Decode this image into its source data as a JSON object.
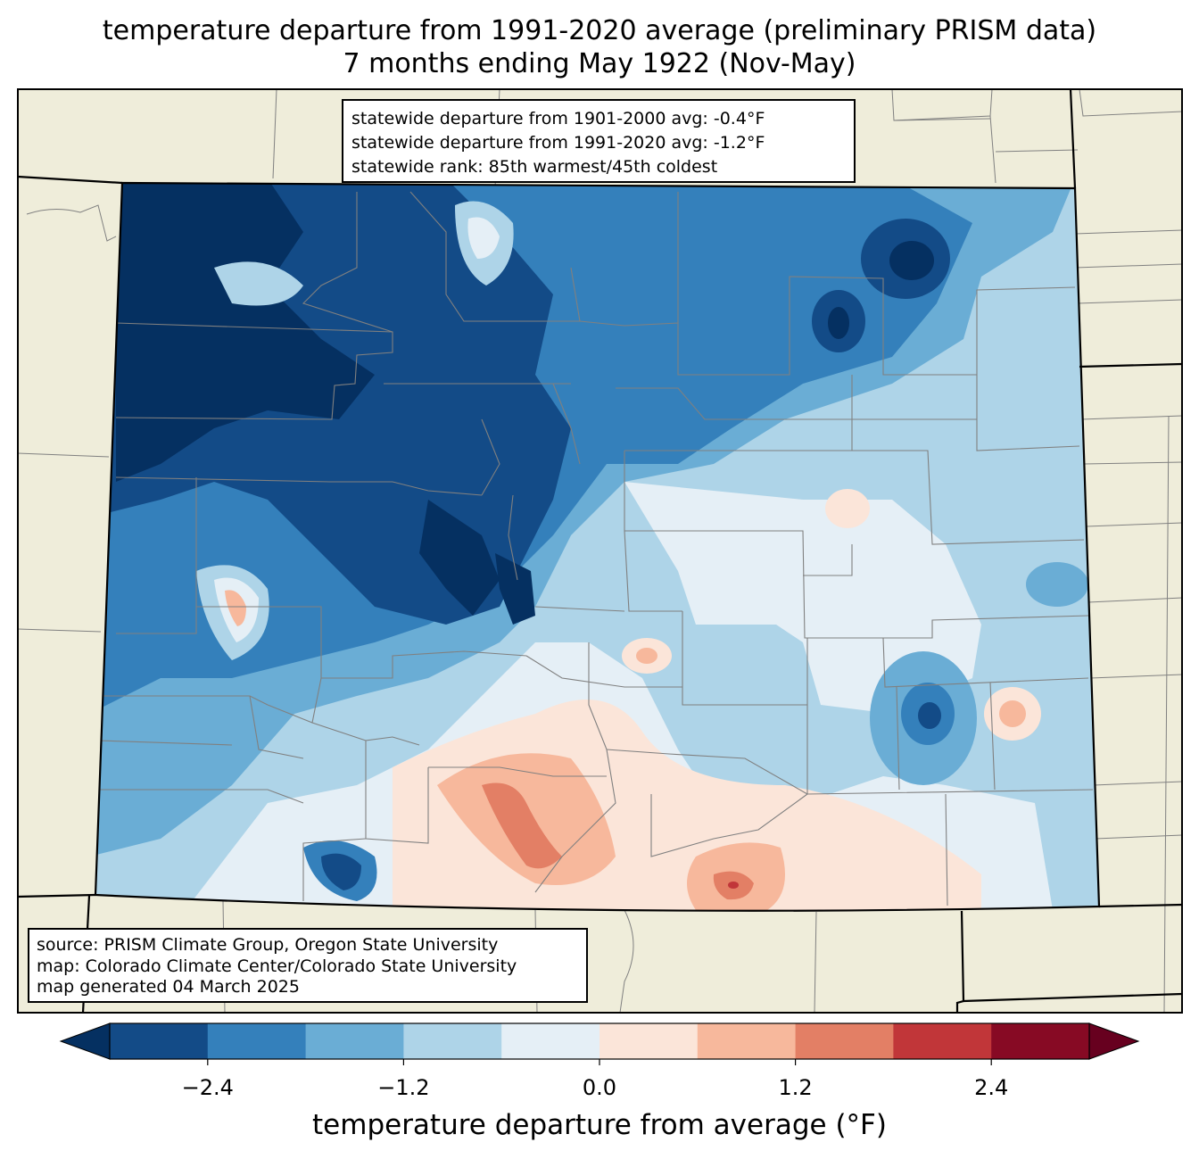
{
  "title": {
    "line1": "temperature departure from 1991-2020 average (preliminary PRISM data)",
    "line2": "7 months ending May 1922 (Nov-May)"
  },
  "stats_box": {
    "line1": "statewide departure from 1901-2000 avg: -0.4°F",
    "line2": "statewide departure from 1991-2020 avg: -1.2°F",
    "line3": "statewide rank: 85th warmest/45th coldest"
  },
  "source_box": {
    "line1": "source: PRISM Climate Group, Oregon State University",
    "line2": "map: Colorado Climate Center/Colorado State University",
    "line3": "map generated 04 March 2025"
  },
  "colorbar": {
    "label": "temperature departure from average (°F)",
    "ticks": [
      "−2.4",
      "−1.2",
      "0.0",
      "1.2",
      "2.4"
    ],
    "tick_values": [
      -2.4,
      -1.2,
      0.0,
      1.2,
      2.4
    ],
    "range": [
      -3.0,
      3.0
    ],
    "bins": [
      {
        "min": -3.0,
        "max": -2.4,
        "color": "#134b87"
      },
      {
        "min": -2.4,
        "max": -1.8,
        "color": "#3480bb"
      },
      {
        "min": -1.8,
        "max": -1.2,
        "color": "#6aadd5"
      },
      {
        "min": -1.2,
        "max": -0.6,
        "color": "#aed4e8"
      },
      {
        "min": -0.6,
        "max": 0.0,
        "color": "#e5eff6"
      },
      {
        "min": 0.0,
        "max": 0.6,
        "color": "#fbe5d9"
      },
      {
        "min": 0.6,
        "max": 1.2,
        "color": "#f7b89c"
      },
      {
        "min": 1.2,
        "max": 1.8,
        "color": "#e37f65"
      },
      {
        "min": 1.8,
        "max": 2.4,
        "color": "#c13639"
      },
      {
        "min": 2.4,
        "max": 3.0,
        "color": "#870a24"
      }
    ],
    "under_color": "#053061",
    "over_color": "#67001f"
  },
  "colors": {
    "land": "#efedda",
    "state_border": "#000000",
    "county_border": "#808080"
  }
}
